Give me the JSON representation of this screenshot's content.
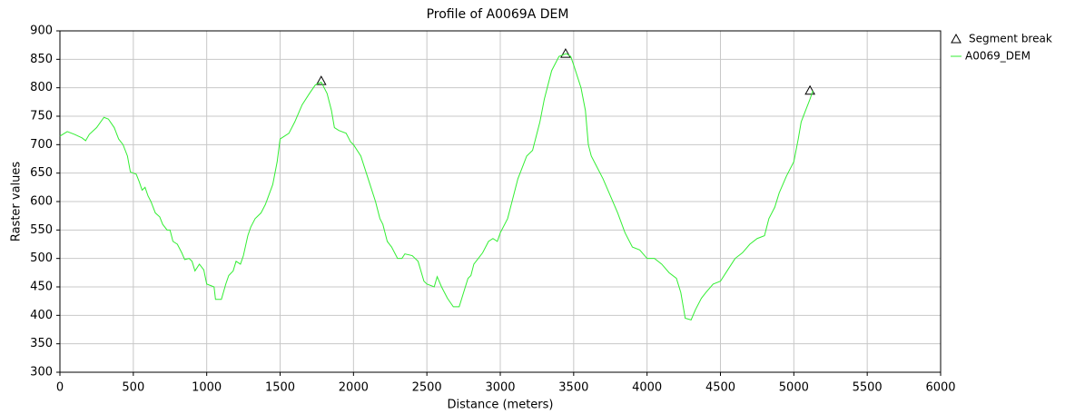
{
  "chart_data": {
    "type": "line",
    "title": "Profile of A0069A DEM",
    "x_label": "Distance (meters)",
    "y_label": "Raster values",
    "xlim": [
      0,
      6000
    ],
    "ylim": [
      300,
      900
    ],
    "xticks": [
      0,
      500,
      1000,
      1500,
      2000,
      2500,
      3000,
      3500,
      4000,
      4500,
      5000,
      5500,
      6000
    ],
    "yticks": [
      300,
      350,
      400,
      450,
      500,
      550,
      600,
      650,
      700,
      750,
      800,
      850,
      900
    ],
    "grid": true,
    "legend": "outside right",
    "series": [
      {
        "name": "Segment break",
        "marker": "triangle",
        "color": "#000000",
        "x": [
          1780,
          3445,
          5110
        ],
        "values": [
          812,
          860,
          795
        ]
      },
      {
        "name": "A0069_DEM",
        "color": "#33ee33",
        "x": [
          0,
          50,
          100,
          150,
          175,
          200,
          250,
          300,
          330,
          370,
          400,
          430,
          460,
          480,
          520,
          540,
          560,
          580,
          600,
          620,
          650,
          680,
          700,
          730,
          750,
          770,
          800,
          830,
          850,
          880,
          900,
          920,
          950,
          980,
          1000,
          1050,
          1060,
          1100,
          1130,
          1150,
          1180,
          1200,
          1230,
          1250,
          1280,
          1300,
          1330,
          1370,
          1400,
          1450,
          1480,
          1500,
          1530,
          1560,
          1600,
          1650,
          1700,
          1740,
          1780,
          1820,
          1850,
          1870,
          1900,
          1950,
          1980,
          2000,
          2050,
          2100,
          2150,
          2180,
          2200,
          2230,
          2260,
          2300,
          2330,
          2350,
          2400,
          2440,
          2480,
          2500,
          2550,
          2570,
          2600,
          2640,
          2680,
          2720,
          2750,
          2780,
          2800,
          2820,
          2850,
          2880,
          2920,
          2950,
          2980,
          3000,
          3050,
          3080,
          3120,
          3150,
          3180,
          3220,
          3270,
          3300,
          3350,
          3400,
          3450,
          3480,
          3500,
          3550,
          3580,
          3600,
          3620,
          3650,
          3700,
          3750,
          3800,
          3850,
          3900,
          3950,
          4000,
          4050,
          4100,
          4150,
          4200,
          4230,
          4260,
          4300,
          4330,
          4370,
          4400,
          4450,
          4500,
          4550,
          4600,
          4650,
          4700,
          4750,
          4800,
          4830,
          4870,
          4900,
          4950,
          5000,
          5030,
          5050,
          5080,
          5110,
          5130
        ],
        "values": [
          715,
          723,
          718,
          712,
          707,
          718,
          730,
          748,
          745,
          730,
          710,
          700,
          680,
          652,
          648,
          635,
          620,
          625,
          610,
          600,
          580,
          573,
          560,
          550,
          550,
          530,
          525,
          510,
          498,
          500,
          495,
          478,
          490,
          480,
          455,
          450,
          428,
          428,
          455,
          470,
          478,
          495,
          490,
          505,
          540,
          555,
          570,
          580,
          595,
          630,
          670,
          710,
          715,
          720,
          740,
          770,
          790,
          805,
          810,
          790,
          760,
          730,
          725,
          720,
          705,
          700,
          680,
          640,
          600,
          570,
          560,
          530,
          520,
          500,
          500,
          508,
          505,
          495,
          460,
          455,
          450,
          468,
          450,
          430,
          415,
          415,
          440,
          465,
          470,
          490,
          500,
          510,
          530,
          535,
          530,
          545,
          570,
          600,
          640,
          660,
          680,
          690,
          740,
          780,
          830,
          855,
          860,
          855,
          840,
          800,
          760,
          700,
          680,
          665,
          640,
          610,
          580,
          545,
          520,
          515,
          500,
          500,
          490,
          475,
          465,
          440,
          395,
          392,
          410,
          430,
          440,
          455,
          460,
          480,
          500,
          510,
          525,
          535,
          540,
          570,
          590,
          615,
          645,
          670,
          710,
          740,
          760,
          780,
          795
        ]
      }
    ]
  }
}
